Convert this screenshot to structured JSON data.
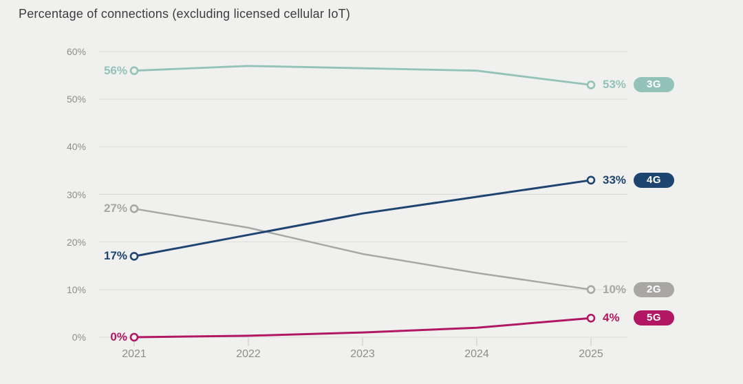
{
  "title": "Percentage of connections (excluding licensed cellular IoT)",
  "colors": {
    "background": "#f0f0ee",
    "gridline": "#dcdbd9",
    "tick_mark": "#c8c7c5",
    "axis_text": "#8e8d8b",
    "title_text": "#3c3c3c"
  },
  "chart_data": {
    "type": "line",
    "title": "Percentage of connections (excluding licensed cellular IoT)",
    "x": [
      "2021",
      "2022",
      "2023",
      "2024",
      "2025"
    ],
    "y_ticks": [
      "0%",
      "10%",
      "20%",
      "30%",
      "40%",
      "50%",
      "60%"
    ],
    "ylim": [
      0,
      60
    ],
    "grid": "horizontal",
    "legend_position": "right-end-badges",
    "series": [
      {
        "name": "3G",
        "badge": "3G",
        "color": "#93c2b9",
        "values": [
          56,
          57,
          56.5,
          56,
          53
        ],
        "start_label": "56%",
        "end_label": "53%"
      },
      {
        "name": "4G",
        "badge": "4G",
        "color": "#1e4470",
        "values": [
          17,
          21.5,
          26,
          29.5,
          33
        ],
        "start_label": "17%",
        "end_label": "33%"
      },
      {
        "name": "2G",
        "badge": "2G",
        "color": "#a8a7a5",
        "values": [
          27,
          23,
          17.5,
          13.5,
          10
        ],
        "start_label": "27%",
        "end_label": "10%"
      },
      {
        "name": "5G",
        "badge": "5G",
        "color": "#b11762",
        "values": [
          0,
          0.3,
          1,
          2,
          4
        ],
        "start_label": "0%",
        "end_label": "4%"
      }
    ]
  }
}
